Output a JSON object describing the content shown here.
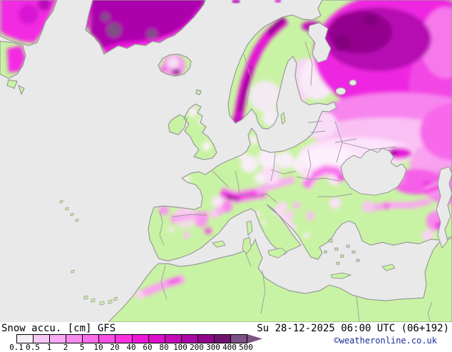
{
  "map": {
    "type": "weather-map",
    "parameter": "Snow accu.",
    "unit": "cm",
    "model": "GFS",
    "sea_color": "#e9e9e9",
    "land_color": "#c9f3a4",
    "coast_color": "#9a9a9a"
  },
  "footer": {
    "title": "Snow accu. [cm] GFS",
    "datetime": "Su 28-12-2025 06:00 UTC (06+192)",
    "copyright": "©weatheronline.co.uk",
    "copyright_color": "#1b2d9a"
  },
  "legend": {
    "tick_labels": [
      "0.1",
      "0.5",
      "1",
      "2",
      "5",
      "10",
      "20",
      "40",
      "60",
      "80",
      "100",
      "200",
      "300",
      "400",
      "500"
    ],
    "cell_colors": [
      "#f6eef6",
      "#f8c8f4",
      "#f9aaf2",
      "#fa8cee",
      "#fb6eea",
      "#fc50e5",
      "#fc32e0",
      "#f018d8",
      "#dc10ca",
      "#c60ab8",
      "#ac06a6",
      "#8e048a",
      "#701270",
      "#7d5183"
    ],
    "arrow_color": "#7d5183"
  }
}
